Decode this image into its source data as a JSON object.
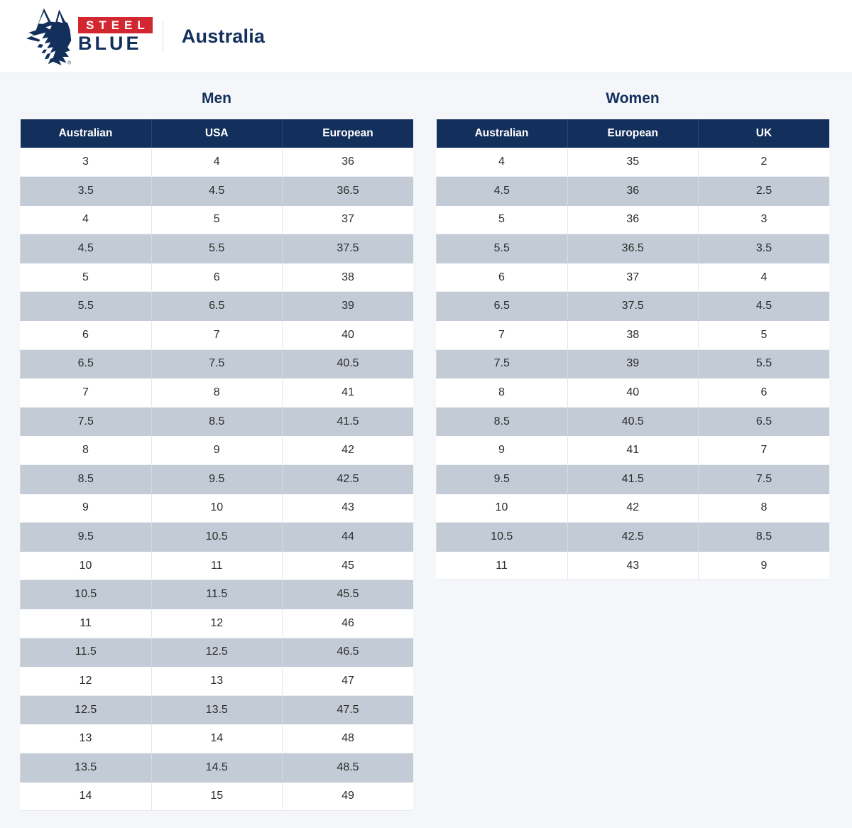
{
  "header": {
    "brand_steel": "STEEL",
    "brand_blue": "BLUE",
    "registered_mark": "®",
    "region": "Australia"
  },
  "icons": {
    "logo": "steel-blue-wolf-logo"
  },
  "colors": {
    "brand_navy": "#132f5b",
    "brand_red": "#d22630",
    "row_stripe": "#c3ccd6",
    "page_background": "#f4f6f9"
  },
  "tables": [
    {
      "title": "Men",
      "columns": [
        "Australian",
        "USA",
        "European"
      ],
      "rows": [
        [
          "3",
          "4",
          "36"
        ],
        [
          "3.5",
          "4.5",
          "36.5"
        ],
        [
          "4",
          "5",
          "37"
        ],
        [
          "4.5",
          "5.5",
          "37.5"
        ],
        [
          "5",
          "6",
          "38"
        ],
        [
          "5.5",
          "6.5",
          "39"
        ],
        [
          "6",
          "7",
          "40"
        ],
        [
          "6.5",
          "7.5",
          "40.5"
        ],
        [
          "7",
          "8",
          "41"
        ],
        [
          "7.5",
          "8.5",
          "41.5"
        ],
        [
          "8",
          "9",
          "42"
        ],
        [
          "8.5",
          "9.5",
          "42.5"
        ],
        [
          "9",
          "10",
          "43"
        ],
        [
          "9.5",
          "10.5",
          "44"
        ],
        [
          "10",
          "11",
          "45"
        ],
        [
          "10.5",
          "11.5",
          "45.5"
        ],
        [
          "11",
          "12",
          "46"
        ],
        [
          "11.5",
          "12.5",
          "46.5"
        ],
        [
          "12",
          "13",
          "47"
        ],
        [
          "12.5",
          "13.5",
          "47.5"
        ],
        [
          "13",
          "14",
          "48"
        ],
        [
          "13.5",
          "14.5",
          "48.5"
        ],
        [
          "14",
          "15",
          "49"
        ]
      ]
    },
    {
      "title": "Women",
      "columns": [
        "Australian",
        "European",
        "UK"
      ],
      "rows": [
        [
          "4",
          "35",
          "2"
        ],
        [
          "4.5",
          "36",
          "2.5"
        ],
        [
          "5",
          "36",
          "3"
        ],
        [
          "5.5",
          "36.5",
          "3.5"
        ],
        [
          "6",
          "37",
          "4"
        ],
        [
          "6.5",
          "37.5",
          "4.5"
        ],
        [
          "7",
          "38",
          "5"
        ],
        [
          "7.5",
          "39",
          "5.5"
        ],
        [
          "8",
          "40",
          "6"
        ],
        [
          "8.5",
          "40.5",
          "6.5"
        ],
        [
          "9",
          "41",
          "7"
        ],
        [
          "9.5",
          "41.5",
          "7.5"
        ],
        [
          "10",
          "42",
          "8"
        ],
        [
          "10.5",
          "42.5",
          "8.5"
        ],
        [
          "11",
          "43",
          "9"
        ]
      ]
    }
  ]
}
